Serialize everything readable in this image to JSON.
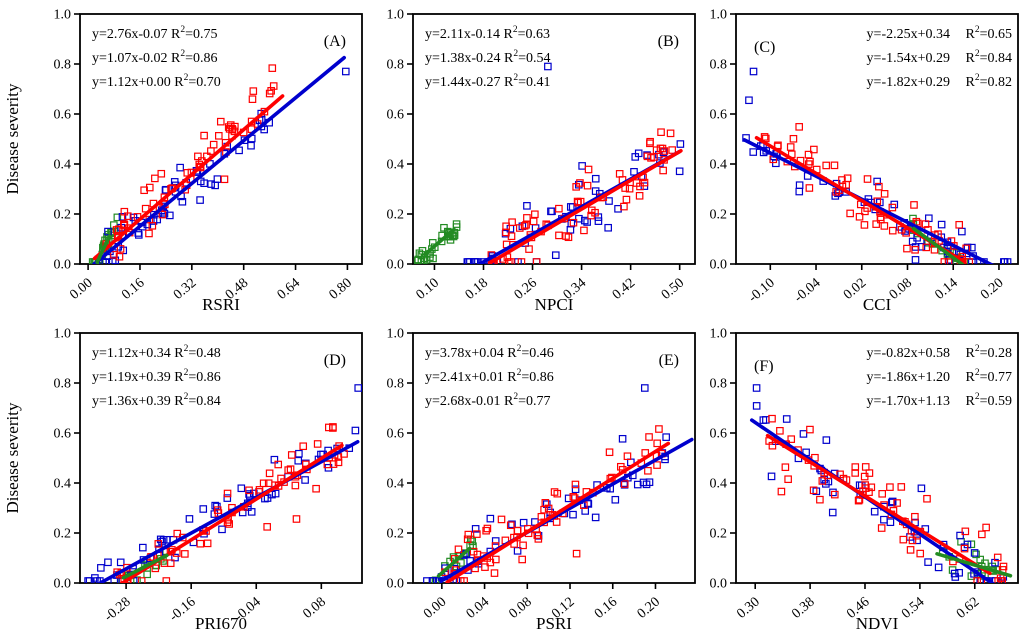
{
  "figure": {
    "ylabel": "Disease severity",
    "ylim": [
      0,
      1
    ],
    "y_ticks": [
      {
        "v": 0.0,
        "label": "0.0"
      },
      {
        "v": 0.2,
        "label": "0.2"
      },
      {
        "v": 0.4,
        "label": "0.4"
      },
      {
        "v": 0.6,
        "label": "0.6"
      },
      {
        "v": 0.8,
        "label": "0.8"
      },
      {
        "v": 1.0,
        "label": "1.0"
      }
    ],
    "colors": {
      "green": "#228B22",
      "blue": "#0000CD",
      "red": "#FF0000",
      "axis": "#000000",
      "background": "#FFFFFF"
    },
    "r_symbol": "R",
    "r_sup": "2"
  },
  "chart_data": {
    "type": "scatter",
    "marker": "open-square",
    "panels": [
      {
        "id": "A",
        "corner_label": "(A)",
        "corner": "right",
        "eq_align": "left",
        "xlabel": "RSRI",
        "xlim": [
          -0.025,
          0.845
        ],
        "x_ticks": [
          {
            "v": 0.0,
            "label": "0.00"
          },
          {
            "v": 0.16,
            "label": "0.16"
          },
          {
            "v": 0.32,
            "label": "0.32"
          },
          {
            "v": 0.48,
            "label": "0.48"
          },
          {
            "v": 0.64,
            "label": "0.64"
          },
          {
            "v": 0.8,
            "label": "0.80"
          }
        ],
        "series": [
          {
            "color": "green",
            "eq": "y=2.76x-0.07",
            "slope": 2.76,
            "intercept": -0.07,
            "r2": "0.75",
            "line_x": [
              0.028,
              0.066
            ],
            "scatter": {
              "n": 25,
              "x_range": [
                0.012,
                0.092
              ],
              "noise": 0.015,
              "seed": 11
            },
            "extra": []
          },
          {
            "color": "blue",
            "eq": "y=1.07x-0.02",
            "slope": 1.07,
            "intercept": -0.02,
            "r2": "0.86",
            "line_x": [
              0.018,
              0.79
            ],
            "scatter": {
              "n": 58,
              "x_range": [
                0.03,
                0.56
              ],
              "noise": 0.05,
              "seed": 12
            },
            "extra": [
              [
                0.795,
                0.77
              ]
            ]
          },
          {
            "color": "red",
            "eq": "y=1.12x+0.00",
            "slope": 1.12,
            "intercept": 0.0,
            "r2": "0.70",
            "line_x": [
              0.02,
              0.6
            ],
            "scatter": {
              "n": 70,
              "x_range": [
                0.03,
                0.575
              ],
              "noise": 0.06,
              "seed": 13
            },
            "extra": []
          }
        ]
      },
      {
        "id": "B",
        "corner_label": "(B)",
        "corner": "right",
        "eq_align": "left",
        "xlabel": "NPCI",
        "xlim": [
          0.065,
          0.525
        ],
        "x_ticks": [
          {
            "v": 0.1,
            "label": "0.10"
          },
          {
            "v": 0.18,
            "label": "0.18"
          },
          {
            "v": 0.26,
            "label": "0.26"
          },
          {
            "v": 0.34,
            "label": "0.34"
          },
          {
            "v": 0.42,
            "label": "0.42"
          },
          {
            "v": 0.5,
            "label": "0.50"
          }
        ],
        "series": [
          {
            "color": "green",
            "eq": "y=2.11x-0.14",
            "slope": 2.11,
            "intercept": -0.14,
            "r2": "0.63",
            "line_x": [
              0.085,
              0.132
            ],
            "scatter": {
              "n": 30,
              "x_range": [
                0.072,
                0.138
              ],
              "noise": 0.022,
              "seed": 21
            },
            "extra": []
          },
          {
            "color": "blue",
            "eq": "y=1.38x-0.24",
            "slope": 1.38,
            "intercept": -0.24,
            "r2": "0.54",
            "line_x": [
              0.168,
              0.5
            ],
            "scatter": {
              "n": 55,
              "x_range": [
                0.152,
                0.502
              ],
              "noise": 0.095,
              "seed": 22
            },
            "extra": [
              [
                0.285,
                0.79
              ]
            ]
          },
          {
            "color": "red",
            "eq": "y=1.44x-0.27",
            "slope": 1.44,
            "intercept": -0.27,
            "r2": "0.41",
            "line_x": [
              0.19,
              0.502
            ],
            "scatter": {
              "n": 72,
              "x_range": [
                0.19,
                0.502
              ],
              "noise": 0.07,
              "seed": 23
            },
            "extra": []
          }
        ]
      },
      {
        "id": "C",
        "corner_label": "(C)",
        "corner": "left",
        "eq_align": "right",
        "xlabel": "CCI",
        "xlim": [
          -0.145,
          0.225
        ],
        "x_ticks": [
          {
            "v": -0.1,
            "label": "-0.10"
          },
          {
            "v": -0.04,
            "label": "-0.04"
          },
          {
            "v": 0.02,
            "label": "0.02"
          },
          {
            "v": 0.08,
            "label": "0.08"
          },
          {
            "v": 0.14,
            "label": "0.14"
          },
          {
            "v": 0.2,
            "label": "0.20"
          }
        ],
        "series": [
          {
            "color": "green",
            "eq": "y=-2.25x+0.34",
            "slope": -2.25,
            "intercept": 0.34,
            "r2": "0.65",
            "line_x": [
              0.088,
              0.152
            ],
            "scatter": {
              "n": 20,
              "x_range": [
                0.082,
                0.158
              ],
              "noise": 0.02,
              "seed": 31
            },
            "extra": []
          },
          {
            "color": "blue",
            "eq": "y=-1.54x+0.29",
            "slope": -1.54,
            "intercept": 0.29,
            "r2": "0.84",
            "line_x": [
              -0.134,
              0.212
            ],
            "scatter": {
              "n": 58,
              "x_range": [
                -0.135,
                0.212
              ],
              "noise": 0.045,
              "seed": 32
            },
            "extra": [
              [
                -0.122,
                0.77
              ],
              [
                -0.128,
                0.655
              ]
            ]
          },
          {
            "color": "red",
            "eq": "y=-1.82x+0.29",
            "slope": -1.82,
            "intercept": 0.29,
            "r2": "0.82",
            "line_x": [
              -0.118,
              0.155
            ],
            "scatter": {
              "n": 72,
              "x_range": [
                -0.112,
                0.162
              ],
              "noise": 0.05,
              "seed": 33
            },
            "extra": []
          }
        ]
      },
      {
        "id": "D",
        "corner_label": "(D)",
        "corner": "right",
        "eq_align": "left",
        "xlabel": "PRI670",
        "xlim": [
          -0.365,
          0.155
        ],
        "x_ticks": [
          {
            "v": -0.28,
            "label": "-0.28"
          },
          {
            "v": -0.16,
            "label": "-0.16"
          },
          {
            "v": -0.04,
            "label": "-0.04"
          },
          {
            "v": 0.08,
            "label": "0.08"
          }
        ],
        "series": [
          {
            "color": "green",
            "eq": "y=1.12x+0.34",
            "slope": 1.12,
            "intercept": 0.34,
            "r2": "0.48",
            "line_x": [
              -0.285,
              -0.205
            ],
            "scatter": {
              "n": 15,
              "x_range": [
                -0.292,
                -0.198
              ],
              "noise": 0.018,
              "seed": 41
            },
            "extra": []
          },
          {
            "color": "blue",
            "eq": "y=1.19x+0.39",
            "slope": 1.19,
            "intercept": 0.39,
            "r2": "0.86",
            "line_x": [
              -0.33,
              0.147
            ],
            "scatter": {
              "n": 62,
              "x_range": [
                -0.352,
                0.145
              ],
              "noise": 0.045,
              "seed": 42
            },
            "extra": [
              [
                0.148,
                0.78
              ]
            ]
          },
          {
            "color": "red",
            "eq": "y=1.36x+0.39",
            "slope": 1.36,
            "intercept": 0.39,
            "r2": "0.84",
            "line_x": [
              -0.295,
              0.118
            ],
            "scatter": {
              "n": 70,
              "x_range": [
                -0.302,
                0.122
              ],
              "noise": 0.05,
              "seed": 43
            },
            "extra": []
          }
        ]
      },
      {
        "id": "E",
        "corner_label": "(E)",
        "corner": "right",
        "eq_align": "left",
        "xlabel": "PSRI",
        "xlim": [
          -0.027,
          0.237
        ],
        "x_ticks": [
          {
            "v": 0.0,
            "label": "0.00"
          },
          {
            "v": 0.04,
            "label": "0.04"
          },
          {
            "v": 0.08,
            "label": "0.08"
          },
          {
            "v": 0.12,
            "label": "0.12"
          },
          {
            "v": 0.16,
            "label": "0.16"
          },
          {
            "v": 0.2,
            "label": "0.20"
          }
        ],
        "series": [
          {
            "color": "green",
            "eq": "y=3.78x+0.04",
            "slope": 3.78,
            "intercept": 0.04,
            "r2": "0.46",
            "line_x": [
              -0.003,
              0.026
            ],
            "scatter": {
              "n": 18,
              "x_range": [
                -0.012,
                0.03
              ],
              "noise": 0.022,
              "seed": 51
            },
            "extra": []
          },
          {
            "color": "blue",
            "eq": "y=2.41x+0.01",
            "slope": 2.41,
            "intercept": 0.01,
            "r2": "0.86",
            "line_x": [
              0.0,
              0.234
            ],
            "scatter": {
              "n": 58,
              "x_range": [
                -0.02,
                0.232
              ],
              "noise": 0.05,
              "seed": 52
            },
            "extra": [
              [
                0.19,
                0.78
              ]
            ]
          },
          {
            "color": "red",
            "eq": "y=2.68x-0.01",
            "slope": 2.68,
            "intercept": -0.01,
            "r2": "0.77",
            "line_x": [
              0.005,
              0.212
            ],
            "scatter": {
              "n": 72,
              "x_range": [
                0.002,
                0.213
              ],
              "noise": 0.06,
              "seed": 53
            },
            "extra": []
          }
        ]
      },
      {
        "id": "F",
        "corner_label": "(F)",
        "corner": "left",
        "eq_align": "right",
        "xlabel": "NDVI",
        "xlim": [
          0.272,
          0.683
        ],
        "x_ticks": [
          {
            "v": 0.3,
            "label": "0.30"
          },
          {
            "v": 0.38,
            "label": "0.38"
          },
          {
            "v": 0.46,
            "label": "0.46"
          },
          {
            "v": 0.54,
            "label": "0.54"
          },
          {
            "v": 0.62,
            "label": "0.62"
          }
        ],
        "series": [
          {
            "color": "green",
            "eq": "y=-0.82x+0.58",
            "slope": -0.82,
            "intercept": 0.58,
            "r2": "0.28",
            "line_x": [
              0.565,
              0.672
            ],
            "scatter": {
              "n": 15,
              "x_range": [
                0.572,
                0.674
              ],
              "noise": 0.025,
              "seed": 61
            },
            "extra": [
              [
                0.6,
                0.165
              ],
              [
                0.615,
                0.155
              ]
            ]
          },
          {
            "color": "blue",
            "eq": "y=-1.86x+1.20",
            "slope": -1.86,
            "intercept": 1.2,
            "r2": "0.77",
            "line_x": [
              0.295,
              0.657
            ],
            "scatter": {
              "n": 55,
              "x_range": [
                0.298,
                0.668
              ],
              "noise": 0.075,
              "seed": 62
            },
            "extra": [
              [
                0.302,
                0.78
              ]
            ]
          },
          {
            "color": "red",
            "eq": "y=-1.70x+1.13",
            "slope": -1.7,
            "intercept": 1.13,
            "r2": "0.59",
            "line_x": [
              0.318,
              0.642
            ],
            "scatter": {
              "n": 70,
              "x_range": [
                0.318,
                0.662
              ],
              "noise": 0.09,
              "seed": 63
            },
            "extra": []
          }
        ]
      }
    ]
  }
}
